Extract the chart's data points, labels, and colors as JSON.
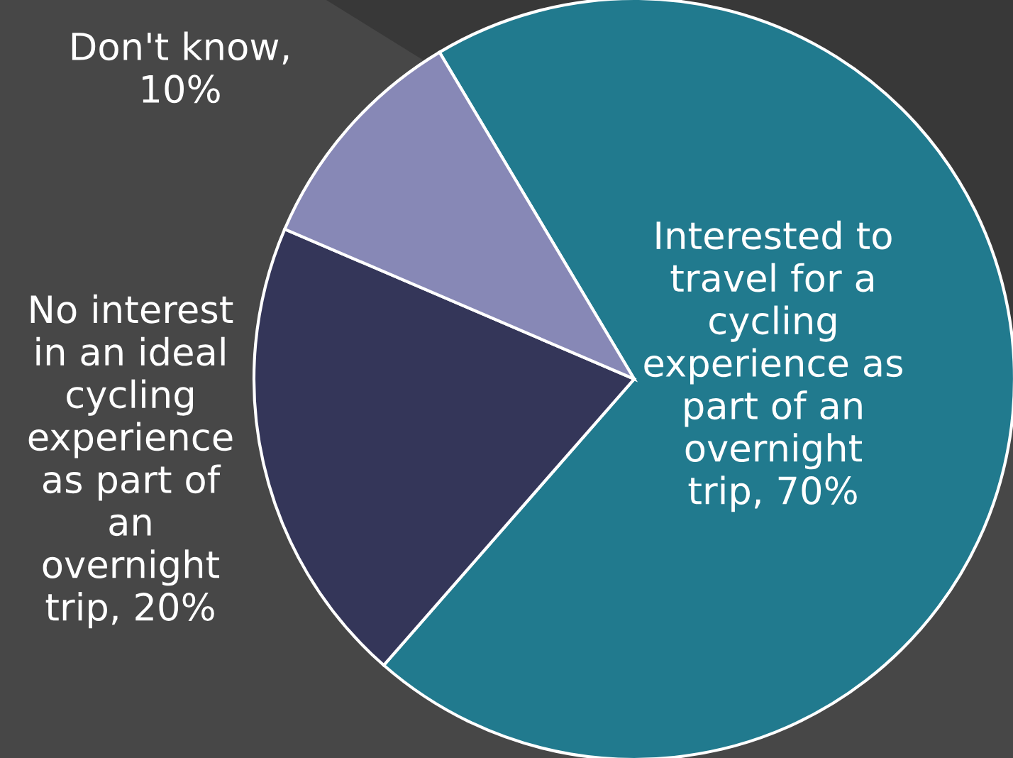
{
  "chart_data": {
    "type": "pie",
    "categories": [
      "Interested to travel for a cycling experience as part of an overnight trip, 70%",
      "No interest in an ideal cycling experience as part of an overnight trip, 20%",
      "Don't know, 10%"
    ],
    "values": [
      70,
      20,
      10
    ],
    "colors": [
      "#217a8e",
      "#343659",
      "#8788b6"
    ]
  }
}
